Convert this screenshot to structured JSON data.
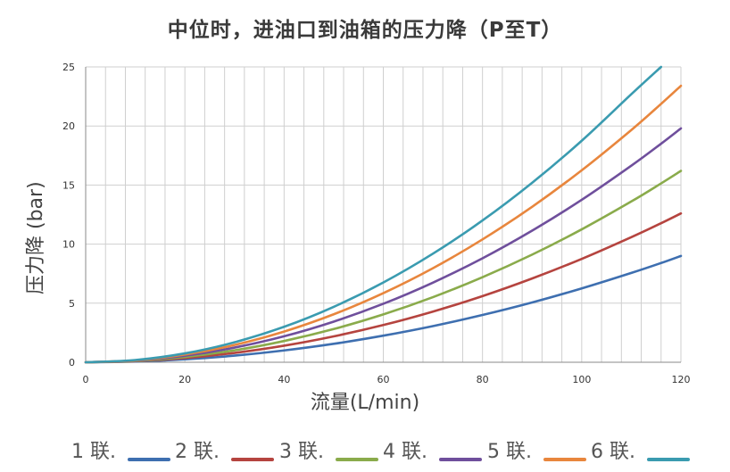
{
  "chart_data": {
    "type": "line",
    "title": "中位时，进油口到油箱的压力降（P至T）",
    "xlabel": "流量(L/min)",
    "ylabel": "压力降 (bar)",
    "xlim": [
      0,
      120
    ],
    "ylim": [
      0,
      25
    ],
    "xticks": [
      "0",
      "20",
      "40",
      "60",
      "80",
      "100",
      "120"
    ],
    "yticks": [
      "0",
      "5",
      "10",
      "15",
      "20",
      "25"
    ],
    "grid": true,
    "legend_position": "bottom",
    "x": [
      0,
      10,
      20,
      30,
      40,
      50,
      60,
      70,
      80,
      90,
      100,
      110,
      116,
      120
    ],
    "series": [
      {
        "name": "1 联.",
        "color": "#3e6fb0",
        "values": [
          0,
          0.06,
          0.25,
          0.56,
          1.0,
          1.56,
          2.25,
          3.06,
          4.0,
          5.06,
          6.25,
          7.56,
          8.4,
          9.0
        ]
      },
      {
        "name": "2 联.",
        "color": "#b5443f",
        "values": [
          0,
          0.09,
          0.35,
          0.79,
          1.4,
          2.19,
          3.15,
          4.29,
          5.6,
          7.09,
          8.75,
          10.59,
          11.77,
          12.6
        ]
      },
      {
        "name": "3 联.",
        "color": "#8aab4b",
        "values": [
          0,
          0.11,
          0.45,
          1.01,
          1.8,
          2.81,
          4.05,
          5.51,
          7.2,
          9.11,
          11.25,
          13.61,
          15.14,
          16.2
        ]
      },
      {
        "name": "4 联.",
        "color": "#6f4f9c",
        "values": [
          0,
          0.14,
          0.55,
          1.24,
          2.2,
          3.44,
          4.95,
          6.74,
          8.8,
          11.14,
          13.75,
          16.64,
          18.5,
          19.8
        ]
      },
      {
        "name": "5 联.",
        "color": "#e8863d",
        "values": [
          0,
          0.16,
          0.65,
          1.46,
          2.6,
          4.06,
          5.85,
          7.96,
          10.4,
          13.16,
          16.25,
          19.66,
          21.87,
          23.4
        ]
      },
      {
        "name": "6 联.",
        "color": "#3a9bb0",
        "values": [
          0,
          0.19,
          0.75,
          1.69,
          3.0,
          4.69,
          6.75,
          9.19,
          12.0,
          15.19,
          18.75,
          22.69,
          25.0,
          null
        ]
      }
    ]
  }
}
